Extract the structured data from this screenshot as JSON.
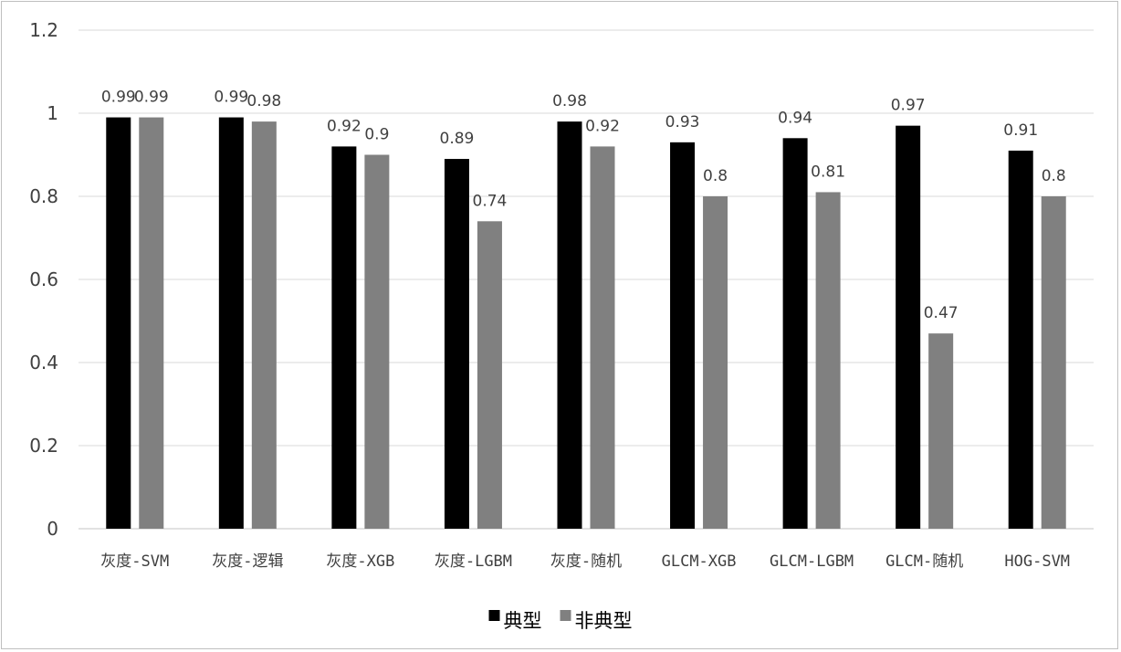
{
  "chart_data": {
    "type": "bar",
    "categories": [
      "灰度-SVM",
      "灰度-逻辑",
      "灰度-XGB",
      "灰度-LGBM",
      "灰度-随机",
      "GLCM-XGB",
      "GLCM-LGBM",
      "GLCM-随机",
      "HOG-SVM"
    ],
    "series": [
      {
        "name": "典型",
        "color": "#000000",
        "values": [
          0.99,
          0.99,
          0.92,
          0.89,
          0.98,
          0.93,
          0.94,
          0.97,
          0.91
        ]
      },
      {
        "name": "非典型",
        "color": "#808080",
        "values": [
          0.99,
          0.98,
          0.9,
          0.74,
          0.92,
          0.8,
          0.81,
          0.47,
          0.8
        ]
      }
    ],
    "ylim": [
      0,
      1.2
    ],
    "yticks": [
      0,
      0.2,
      0.4,
      0.6,
      0.8,
      1,
      1.2
    ],
    "ytick_labels": [
      "0",
      "0.2",
      "0.4",
      "0.6",
      "0.8",
      "1",
      "1.2"
    ],
    "grid": true,
    "legend": "bottom-center",
    "data_labels": true
  }
}
